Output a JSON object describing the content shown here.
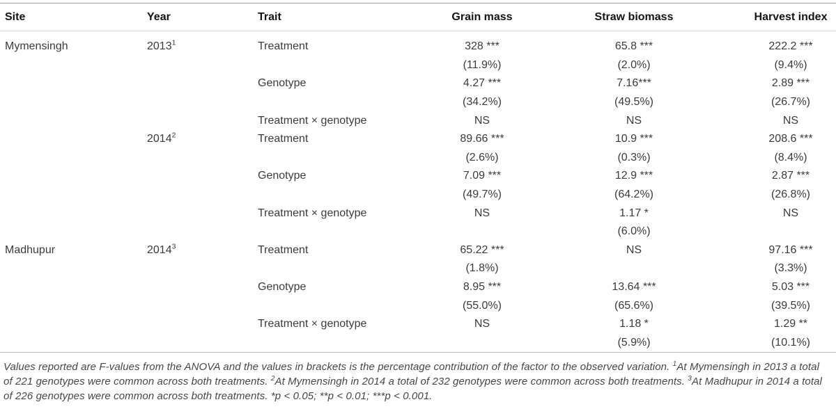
{
  "table": {
    "headers": [
      {
        "id": "site",
        "label": "Site"
      },
      {
        "id": "year",
        "label": "Year"
      },
      {
        "id": "trait",
        "label": "Trait"
      },
      {
        "id": "grain_mass",
        "label": "Grain mass"
      },
      {
        "id": "straw_biomass",
        "label": "Straw biomass"
      },
      {
        "id": "harvest_index",
        "label": "Harvest index"
      }
    ],
    "rows": [
      {
        "site": "Mymensingh",
        "year": "2013",
        "year_sup": "1",
        "trait": "Treatment",
        "grain": "328 ***",
        "straw": "65.8 ***",
        "harvest": "222.2 ***"
      },
      {
        "site": "",
        "year": "",
        "year_sup": "",
        "trait": "",
        "grain": "(11.9%)",
        "straw": "(2.0%)",
        "harvest": "(9.4%)"
      },
      {
        "site": "",
        "year": "",
        "year_sup": "",
        "trait": "Genotype",
        "grain": "4.27 ***",
        "straw": "7.16***",
        "harvest": "2.89 ***"
      },
      {
        "site": "",
        "year": "",
        "year_sup": "",
        "trait": "",
        "grain": "(34.2%)",
        "straw": "(49.5%)",
        "harvest": "(26.7%)"
      },
      {
        "site": "",
        "year": "",
        "year_sup": "",
        "trait": "Treatment × genotype",
        "grain": "NS",
        "straw": "NS",
        "harvest": "NS"
      },
      {
        "site": "",
        "year": "2014",
        "year_sup": "2",
        "trait": "Treatment",
        "grain": "89.66 ***",
        "straw": "10.9 ***",
        "harvest": "208.6 ***"
      },
      {
        "site": "",
        "year": "",
        "year_sup": "",
        "trait": "",
        "grain": "(2.6%)",
        "straw": "(0.3%)",
        "harvest": "(8.4%)"
      },
      {
        "site": "",
        "year": "",
        "year_sup": "",
        "trait": "Genotype",
        "grain": "7.09 ***",
        "straw": "12.9 ***",
        "harvest": "2.87 ***"
      },
      {
        "site": "",
        "year": "",
        "year_sup": "",
        "trait": "",
        "grain": "(49.7%)",
        "straw": "(64.2%)",
        "harvest": "(26.8%)"
      },
      {
        "site": "",
        "year": "",
        "year_sup": "",
        "trait": "Treatment × genotype",
        "grain": "NS",
        "straw": "1.17 *",
        "harvest": "NS"
      },
      {
        "site": "",
        "year": "",
        "year_sup": "",
        "trait": "",
        "grain": "",
        "straw": "(6.0%)",
        "harvest": ""
      },
      {
        "site": "Madhupur",
        "year": "2014",
        "year_sup": "3",
        "trait": "Treatment",
        "grain": "65.22 ***",
        "straw": "NS",
        "harvest": "97.16 ***"
      },
      {
        "site": "",
        "year": "",
        "year_sup": "",
        "trait": "",
        "grain": "(1.8%)",
        "straw": "",
        "harvest": "(3.3%)"
      },
      {
        "site": "",
        "year": "",
        "year_sup": "",
        "trait": "Genotype",
        "grain": "8.95 ***",
        "straw": "13.64 ***",
        "harvest": "5.03 ***"
      },
      {
        "site": "",
        "year": "",
        "year_sup": "",
        "trait": "",
        "grain": "(55.0%)",
        "straw": "(65.6%)",
        "harvest": "(39.5%)"
      },
      {
        "site": "",
        "year": "",
        "year_sup": "",
        "trait": "Treatment × genotype",
        "grain": "NS",
        "straw": "1.18 *",
        "harvest": "1.29 **"
      },
      {
        "site": "",
        "year": "",
        "year_sup": "",
        "trait": "",
        "grain": "",
        "straw": "(5.9%)",
        "harvest": "(10.1%)"
      }
    ]
  },
  "footnote": {
    "segments": [
      {
        "text": "Values reported are F-values from the ANOVA and the values in brackets is the percentage contribution of the factor to the observed variation. "
      },
      {
        "sup": "1"
      },
      {
        "text": "At Mymensingh in 2013 a total of 221 genotypes were common across both treatments. "
      },
      {
        "sup": "2"
      },
      {
        "text": "At Mymensingh in 2014 a total of 232 genotypes were common across both treatments. "
      },
      {
        "sup": "3"
      },
      {
        "text": "At Madhupur in 2014 a total of 226 genotypes were common across both treatments. *p < 0.05; **p < 0.01; ***p < 0.001."
      }
    ]
  },
  "colors": {
    "background": "#ffffff",
    "header_text": "#141414",
    "body_text": "#3b3b3b",
    "footnote_text": "#474747",
    "rule_top": "#9f9f9f",
    "rule_under_header": "#d9d9d9",
    "rule_above_footnote": "#b5b5b5"
  }
}
